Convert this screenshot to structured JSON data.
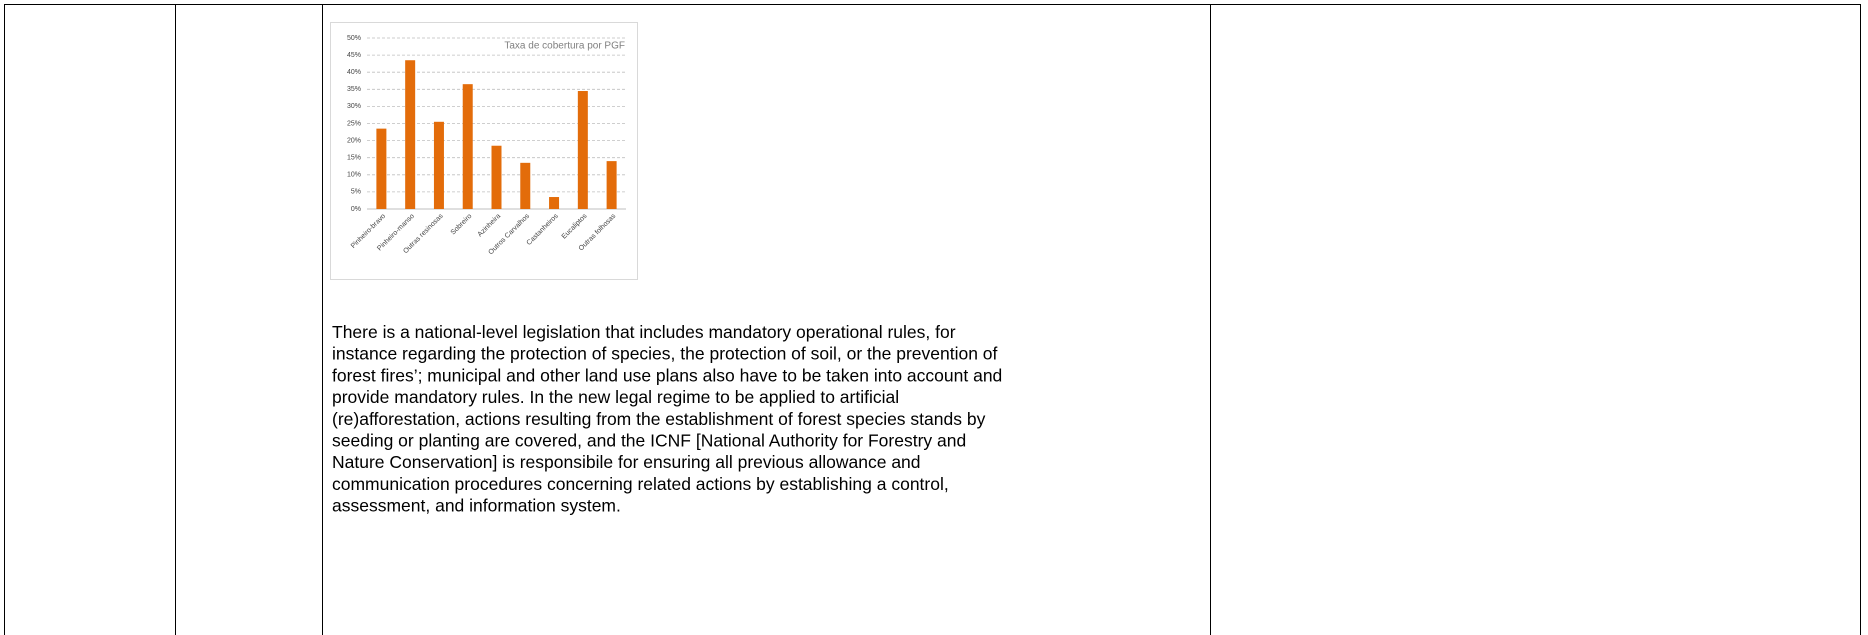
{
  "chart_data": {
    "type": "bar",
    "title": "Taxa de cobertura por PGF",
    "categories": [
      "Pinheiro-bravo",
      "Pinheiro-manso",
      "Outras resinosas",
      "Sobreiro",
      "Azinheira",
      "Outros Carvalhos",
      "Castanheiros",
      "Eucaliptos",
      "Outras folhosas"
    ],
    "values": [
      23.5,
      43.5,
      25.5,
      36.5,
      18.5,
      13.5,
      3.5,
      34.5,
      14
    ],
    "color": "#e36c0a",
    "ylim": [
      0,
      50
    ],
    "yticks": [
      {
        "value": 0,
        "label": "0%"
      },
      {
        "value": 5,
        "label": "5%"
      },
      {
        "value": 10,
        "label": "10%"
      },
      {
        "value": 15,
        "label": "15%"
      },
      {
        "value": 20,
        "label": "20%"
      },
      {
        "value": 25,
        "label": "25%"
      },
      {
        "value": 30,
        "label": "30%"
      },
      {
        "value": 35,
        "label": "35%"
      },
      {
        "value": 40,
        "label": "40%"
      },
      {
        "value": 45,
        "label": "45%"
      },
      {
        "value": 50,
        "label": "50%"
      }
    ],
    "grid": true
  },
  "paragraph": {
    "lines": [
      "There is a national-level legislation that includes mandatory operational rules, for",
      "instance regarding the protection of species, the protection of soil, or the prevention of",
      "forest fires’; municipal and other land use plans also have to be taken into account and",
      "provide mandatory rules. In the new legal regime to be applied to artificial",
      "(re)afforestation, actions resulting from the establishment of forest species stands by",
      "seeding or planting are covered, and the ICNF [National Authority for Forestry and",
      "Nature Conservation] is responsibile for ensuring all previous allowance and",
      "communication procedures concerning related actions by establishing a control,",
      "assessment, and information system."
    ]
  }
}
